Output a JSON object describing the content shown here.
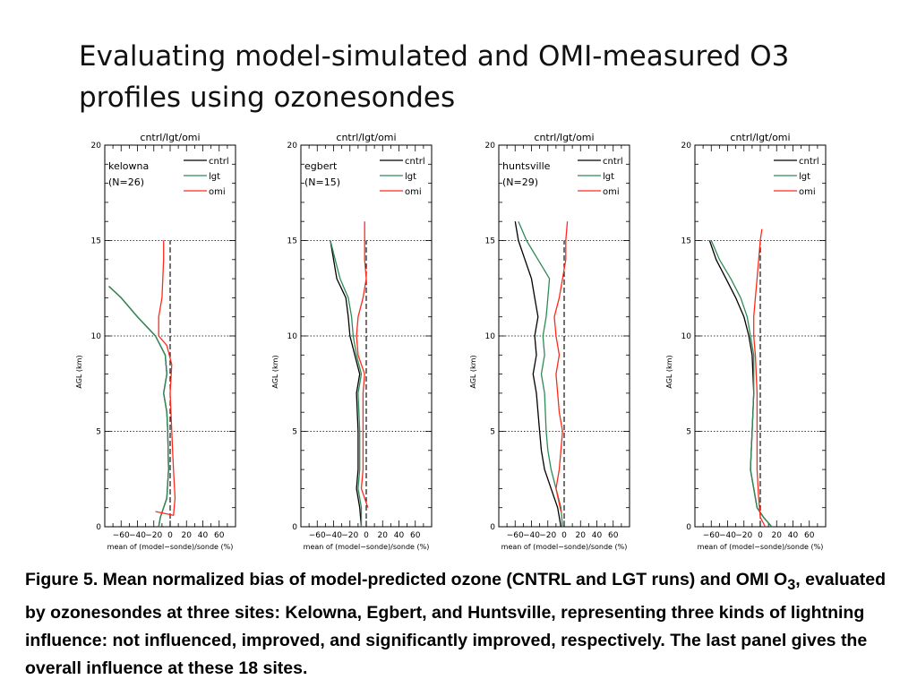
{
  "slide": {
    "title": "Evaluating model-simulated and OMI-measured O3 profiles using ozonesondes"
  },
  "caption": {
    "fig_label": "Figure 5.",
    "part1": " Mean normalized bias of model-predicted ozone (CNTRL and LGT runs) and OMI O",
    "sub": "3",
    "part2": ", evaluated by ozonesondes at three sites: Kelowna, Egbert, and Huntsville, representing three kinds of lightning influence: not influenced, improved, and significantly improved, respectively. The last panel gives the overall influence at these 18 sites."
  },
  "colors": {
    "cntrl": "#000000",
    "lgt": "#2e8b57",
    "omi": "#ff2a1a",
    "axis": "#000000"
  },
  "chart_data": [
    {
      "type": "line",
      "title": "cntrl/lgt/omi",
      "site_label": "kelowna",
      "n_label": "(N=26)",
      "xlabel": "mean of (model−sonde)/sonde (%)",
      "ylabel": "AGL (km)",
      "xlim": [
        -80,
        80
      ],
      "ylim": [
        0,
        20
      ],
      "xticks": [
        -60,
        -40,
        -20,
        0,
        20,
        40,
        60
      ],
      "yticks": [
        0,
        5,
        10,
        15,
        20
      ],
      "tick_labels_x": [
        "−60",
        "−40",
        "−20",
        "0",
        "20",
        "40",
        "60"
      ],
      "tick_labels_y": [
        "0",
        "5",
        "10",
        "15",
        "20"
      ],
      "legend": [
        "cntrl",
        "lgt",
        "omi"
      ],
      "legend_position": "top-right",
      "grid": "dotted horizontal at 5, 10, 15 km; dashed vertical at 0",
      "series": [
        {
          "name": "cntrl",
          "points": [
            [
              -14,
              0
            ],
            [
              -12,
              0.5
            ],
            [
              -4,
              1.5
            ],
            [
              -2,
              3
            ],
            [
              -3,
              5
            ],
            [
              -4,
              6
            ],
            [
              -8,
              7
            ],
            [
              -4,
              8
            ],
            [
              -6,
              9
            ],
            [
              -18,
              10
            ],
            [
              -40,
              11
            ],
            [
              -60,
              12
            ],
            [
              -75,
              12.6
            ]
          ]
        },
        {
          "name": "lgt",
          "points": [
            [
              -14,
              0
            ],
            [
              -12,
              0.5
            ],
            [
              -4,
              1.5
            ],
            [
              -2,
              3
            ],
            [
              -3,
              5
            ],
            [
              -4,
              6
            ],
            [
              -8,
              7
            ],
            [
              -4,
              8
            ],
            [
              -6,
              9
            ],
            [
              -18,
              10
            ],
            [
              -40,
              11
            ],
            [
              -60,
              12
            ],
            [
              -75,
              12.6
            ]
          ]
        },
        {
          "name": "omi",
          "points": [
            [
              -18,
              0.8
            ],
            [
              4,
              0.6
            ],
            [
              6,
              1.5
            ],
            [
              4,
              3
            ],
            [
              2,
              5
            ],
            [
              0,
              7
            ],
            [
              2,
              8.5
            ],
            [
              -4,
              9.5
            ],
            [
              -14,
              10
            ],
            [
              -14,
              11
            ],
            [
              -10,
              12
            ],
            [
              -8,
              14
            ],
            [
              -8,
              15
            ]
          ]
        }
      ]
    },
    {
      "type": "line",
      "title": "cntrl/lgt/omi",
      "site_label": "egbert",
      "n_label": "(N=15)",
      "xlabel": "mean of (model−sonde)/sonde (%)",
      "ylabel": "AGL (km)",
      "xlim": [
        -80,
        80
      ],
      "ylim": [
        0,
        20
      ],
      "xticks": [
        -60,
        -40,
        -20,
        0,
        20,
        40,
        60
      ],
      "yticks": [
        0,
        5,
        10,
        15,
        20
      ],
      "tick_labels_x": [
        "−60",
        "−40",
        "−20",
        "0",
        "20",
        "40",
        "60"
      ],
      "tick_labels_y": [
        "0",
        "5",
        "10",
        "15",
        "20"
      ],
      "legend": [
        "cntrl",
        "lgt",
        "omi"
      ],
      "legend_position": "top-right",
      "grid": "dotted horizontal at 5, 10, 15 km; dashed vertical at 0",
      "series": [
        {
          "name": "cntrl",
          "points": [
            [
              -6,
              0
            ],
            [
              -8,
              1
            ],
            [
              -12,
              2
            ],
            [
              -10,
              3
            ],
            [
              -10,
              5
            ],
            [
              -12,
              7
            ],
            [
              -8,
              8
            ],
            [
              -14,
              9
            ],
            [
              -20,
              10
            ],
            [
              -22,
              11
            ],
            [
              -25,
              12
            ],
            [
              -36,
              13
            ],
            [
              -40,
              14
            ],
            [
              -44,
              15
            ]
          ]
        },
        {
          "name": "lgt",
          "points": [
            [
              -6,
              0
            ],
            [
              -6,
              1
            ],
            [
              -10,
              2
            ],
            [
              -8,
              3
            ],
            [
              -8,
              5
            ],
            [
              -10,
              7
            ],
            [
              -6,
              8
            ],
            [
              -12,
              9
            ],
            [
              -16,
              10
            ],
            [
              -18,
              11
            ],
            [
              -22,
              12
            ],
            [
              -32,
              13
            ],
            [
              -38,
              14
            ],
            [
              -44,
              15
            ]
          ]
        },
        {
          "name": "omi",
          "points": [
            [
              2,
              1
            ],
            [
              -6,
              2
            ],
            [
              -4,
              3
            ],
            [
              -4,
              5
            ],
            [
              -4,
              7
            ],
            [
              -2,
              8
            ],
            [
              -10,
              9
            ],
            [
              -12,
              10
            ],
            [
              -10,
              11
            ],
            [
              -4,
              12
            ],
            [
              0,
              13
            ],
            [
              -2,
              14
            ],
            [
              -2,
              16
            ]
          ]
        }
      ]
    },
    {
      "type": "line",
      "title": "cntrl/lgt/omi",
      "site_label": "huntsville",
      "n_label": "(N=29)",
      "xlabel": "mean of (model−sonde)/sonde (%)",
      "ylabel": "AGL (km)",
      "xlim": [
        -80,
        80
      ],
      "ylim": [
        0,
        20
      ],
      "xticks": [
        -60,
        -40,
        -20,
        0,
        20,
        40,
        60
      ],
      "yticks": [
        0,
        5,
        10,
        15,
        20
      ],
      "tick_labels_x": [
        "−60",
        "−40",
        "−20",
        "0",
        "20",
        "40",
        "60"
      ],
      "tick_labels_y": [
        "0",
        "5",
        "10",
        "15",
        "20"
      ],
      "legend": [
        "cntrl",
        "lgt",
        "omi"
      ],
      "legend_position": "top-right",
      "grid": "dotted horizontal at 5, 10, 15 km; dashed vertical at 0",
      "series": [
        {
          "name": "cntrl",
          "points": [
            [
              -4,
              0
            ],
            [
              -8,
              1
            ],
            [
              -16,
              2
            ],
            [
              -24,
              3
            ],
            [
              -28,
              4
            ],
            [
              -30,
              5
            ],
            [
              -34,
              7
            ],
            [
              -38,
              8
            ],
            [
              -34,
              9
            ],
            [
              -36,
              10
            ],
            [
              -32,
              11
            ],
            [
              -36,
              12
            ],
            [
              -40,
              13
            ],
            [
              -48,
              14
            ],
            [
              -56,
              15
            ],
            [
              -60,
              16
            ]
          ]
        },
        {
          "name": "lgt",
          "points": [
            [
              -2,
              0
            ],
            [
              -4,
              1
            ],
            [
              -10,
              2
            ],
            [
              -16,
              3
            ],
            [
              -20,
              4
            ],
            [
              -22,
              5
            ],
            [
              -24,
              7
            ],
            [
              -28,
              8
            ],
            [
              -24,
              9
            ],
            [
              -26,
              10
            ],
            [
              -22,
              11
            ],
            [
              -20,
              12
            ],
            [
              -18,
              13
            ],
            [
              -32,
              14
            ],
            [
              -46,
              15
            ],
            [
              -56,
              16
            ]
          ]
        },
        {
          "name": "omi",
          "points": [
            [
              -4,
              0.8
            ],
            [
              -10,
              2
            ],
            [
              -6,
              3
            ],
            [
              -2,
              5
            ],
            [
              -6,
              6
            ],
            [
              -8,
              7
            ],
            [
              -10,
              8
            ],
            [
              -6,
              9
            ],
            [
              -10,
              10
            ],
            [
              -12,
              11
            ],
            [
              -6,
              12
            ],
            [
              -2,
              13
            ],
            [
              2,
              14
            ],
            [
              2,
              15
            ],
            [
              4,
              16
            ]
          ]
        }
      ]
    },
    {
      "type": "line",
      "title": "cntrl/lgt/omi",
      "site_label": "",
      "n_label": "",
      "xlabel": "mean of (model−sonde)/sonde (%)",
      "ylabel": "AGL (km)",
      "xlim": [
        -80,
        80
      ],
      "ylim": [
        0,
        20
      ],
      "xticks": [
        -60,
        -40,
        -20,
        0,
        20,
        40,
        60
      ],
      "yticks": [
        0,
        5,
        10,
        15,
        20
      ],
      "tick_labels_x": [
        "−60",
        "−40",
        "−20",
        "0",
        "20",
        "40",
        "60"
      ],
      "tick_labels_y": [
        "0",
        "5",
        "10",
        "15",
        "20"
      ],
      "legend": [
        "cntrl",
        "lgt",
        "omi"
      ],
      "legend_position": "top-right",
      "grid": "dotted horizontal at 5, 10, 15 km; dashed vertical at 0",
      "series": [
        {
          "name": "cntrl",
          "points": [
            [
              14,
              0
            ],
            [
              4,
              0.5
            ],
            [
              -4,
              1
            ],
            [
              -8,
              2
            ],
            [
              -12,
              3
            ],
            [
              -10,
              5
            ],
            [
              -8,
              7
            ],
            [
              -10,
              9
            ],
            [
              -14,
              10
            ],
            [
              -20,
              11
            ],
            [
              -30,
              12
            ],
            [
              -42,
              13
            ],
            [
              -54,
              14
            ],
            [
              -62,
              15
            ]
          ]
        },
        {
          "name": "lgt",
          "points": [
            [
              14,
              0
            ],
            [
              4,
              0.5
            ],
            [
              -4,
              1
            ],
            [
              -8,
              2
            ],
            [
              -12,
              3
            ],
            [
              -10,
              5
            ],
            [
              -8,
              7
            ],
            [
              -8,
              9
            ],
            [
              -12,
              10
            ],
            [
              -16,
              11
            ],
            [
              -24,
              12
            ],
            [
              -36,
              13
            ],
            [
              -50,
              14
            ],
            [
              -60,
              15
            ]
          ]
        },
        {
          "name": "omi",
          "points": [
            [
              6,
              0
            ],
            [
              0,
              0.5
            ],
            [
              -2,
              1.5
            ],
            [
              -4,
              3
            ],
            [
              -4,
              5
            ],
            [
              -4,
              7
            ],
            [
              -6,
              9
            ],
            [
              -8,
              10
            ],
            [
              -8,
              11
            ],
            [
              -6,
              12
            ],
            [
              -4,
              13
            ],
            [
              -2,
              14
            ],
            [
              0,
              15
            ],
            [
              2,
              15.6
            ]
          ]
        }
      ]
    }
  ]
}
